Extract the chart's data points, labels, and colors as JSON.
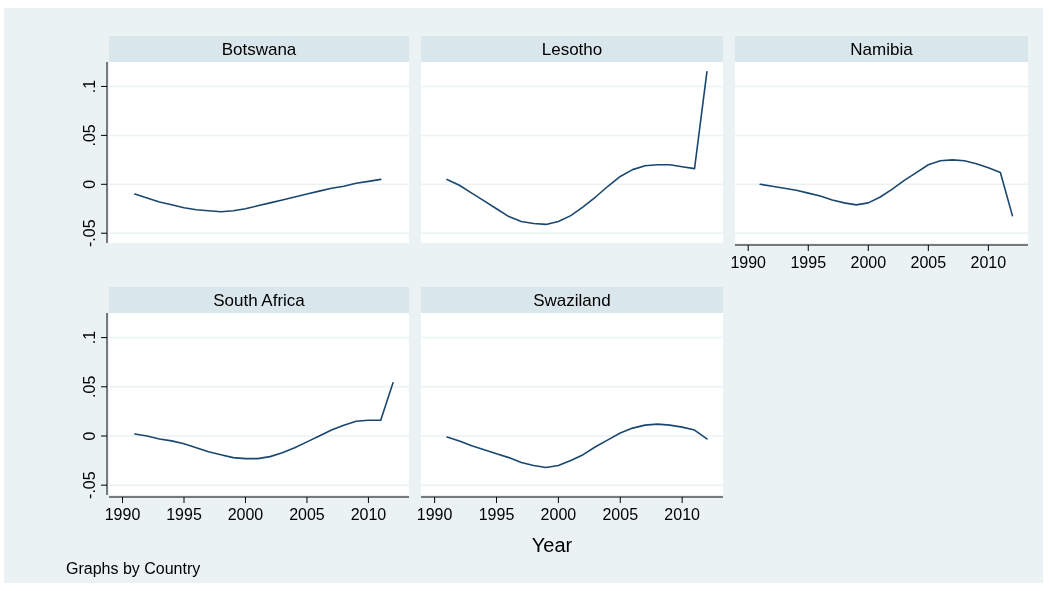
{
  "chart_data": [
    {
      "type": "line",
      "title": "Botswana",
      "x": [
        1991,
        1992,
        1993,
        1994,
        1995,
        1996,
        1997,
        1998,
        1999,
        2000,
        2001,
        2002,
        2003,
        2004,
        2005,
        2006,
        2007,
        2008,
        2009,
        2010,
        2011
      ],
      "series": [
        {
          "color": "#1a476f",
          "values": [
            -0.01,
            -0.014,
            -0.018,
            -0.021,
            -0.024,
            -0.026,
            -0.027,
            -0.028,
            -0.027,
            -0.025,
            -0.022,
            -0.019,
            -0.016,
            -0.013,
            -0.01,
            -0.007,
            -0.004,
            -0.002,
            0.001,
            0.003,
            0.005
          ]
        }
      ],
      "xlim": [
        1988.9,
        2013.3
      ],
      "ylim": [
        -0.06,
        0.125
      ],
      "yticks": [
        {
          "value": -0.05,
          "label": "-.05"
        },
        0,
        {
          "value": 0.05,
          "label": ".05"
        },
        {
          "value": 0.1,
          "label": ".1"
        }
      ],
      "tick_labels": "y",
      "grid": "y"
    },
    {
      "type": "line",
      "title": "Lesotho",
      "x": [
        1991,
        1992,
        1993,
        1994,
        1995,
        1996,
        1997,
        1998,
        1999,
        2000,
        2001,
        2002,
        2003,
        2004,
        2005,
        2006,
        2007,
        2008,
        2009,
        2010,
        2011,
        2012
      ],
      "series": [
        {
          "color": "#1a476f",
          "values": [
            0.005,
            -0.001,
            -0.009,
            -0.017,
            -0.025,
            -0.033,
            -0.038,
            -0.04,
            -0.041,
            -0.038,
            -0.032,
            -0.023,
            -0.013,
            -0.002,
            0.008,
            0.015,
            0.019,
            0.02,
            0.02,
            0.018,
            0.016,
            0.115
          ]
        }
      ],
      "xlim": [
        1988.9,
        2013.3
      ],
      "ylim": [
        -0.06,
        0.125
      ],
      "tick_labels": false,
      "grid": "y",
      "yticks": [
        {
          "value": -0.05,
          "label": null
        },
        {
          "value": 0,
          "label": null
        },
        {
          "value": 0.05,
          "label": null
        },
        {
          "value": 0.1,
          "label": null
        }
      ]
    },
    {
      "type": "line",
      "title": "Namibia",
      "x": [
        1991,
        1992,
        1993,
        1994,
        1995,
        1996,
        1997,
        1998,
        1999,
        2000,
        2001,
        2002,
        2003,
        2004,
        2005,
        2006,
        2007,
        2008,
        2009,
        2010,
        2011,
        2012
      ],
      "series": [
        {
          "color": "#1a476f",
          "values": [
            0.0,
            -0.002,
            -0.004,
            -0.006,
            -0.009,
            -0.012,
            -0.016,
            -0.019,
            -0.021,
            -0.019,
            -0.013,
            -0.005,
            0.004,
            0.012,
            0.02,
            0.024,
            0.025,
            0.024,
            0.021,
            0.017,
            0.012,
            -0.032
          ]
        }
      ],
      "xlim": [
        1988.9,
        2013.3
      ],
      "ylim": [
        -0.06,
        0.125
      ],
      "xticks": [
        1990,
        1995,
        2000,
        2005,
        2010
      ],
      "tick_labels": "x",
      "grid": "y",
      "yticks": [
        {
          "value": -0.05,
          "label": null
        },
        {
          "value": 0,
          "label": null
        },
        {
          "value": 0.05,
          "label": null
        },
        {
          "value": 0.1,
          "label": null
        }
      ]
    },
    {
      "type": "line",
      "title": "South Africa",
      "x": [
        1991,
        1992,
        1993,
        1994,
        1995,
        1996,
        1997,
        1998,
        1999,
        2000,
        2001,
        2002,
        2003,
        2004,
        2005,
        2006,
        2007,
        2008,
        2009,
        2010,
        2011,
        2012
      ],
      "series": [
        {
          "color": "#1a476f",
          "values": [
            0.002,
            0.0,
            -0.003,
            -0.005,
            -0.008,
            -0.012,
            -0.016,
            -0.019,
            -0.022,
            -0.023,
            -0.023,
            -0.021,
            -0.017,
            -0.012,
            -0.006,
            0.0,
            0.006,
            0.011,
            0.015,
            0.016,
            0.016,
            0.054
          ]
        }
      ],
      "xlim": [
        1988.9,
        2013.3
      ],
      "ylim": [
        -0.06,
        0.125
      ],
      "xticks": [
        1990,
        1995,
        2000,
        2005,
        2010
      ],
      "yticks": [
        {
          "value": -0.05,
          "label": "-.05"
        },
        0,
        {
          "value": 0.05,
          "label": ".05"
        },
        {
          "value": 0.1,
          "label": ".1"
        }
      ],
      "grid": "y"
    },
    {
      "type": "line",
      "title": "Swaziland",
      "xlabel": "Year",
      "x": [
        1991,
        1992,
        1993,
        1994,
        1995,
        1996,
        1997,
        1998,
        1999,
        2000,
        2001,
        2002,
        2003,
        2004,
        2005,
        2006,
        2007,
        2008,
        2009,
        2010,
        2011,
        2012
      ],
      "series": [
        {
          "color": "#1a476f",
          "values": [
            -0.001,
            -0.005,
            -0.01,
            -0.014,
            -0.018,
            -0.022,
            -0.027,
            -0.03,
            -0.032,
            -0.03,
            -0.025,
            -0.019,
            -0.011,
            -0.004,
            0.003,
            0.008,
            0.011,
            0.012,
            0.011,
            0.009,
            0.006,
            -0.003
          ]
        }
      ],
      "xlim": [
        1988.9,
        2013.3
      ],
      "ylim": [
        -0.06,
        0.125
      ],
      "xticks": [
        1990,
        1995,
        2000,
        2005,
        2010
      ],
      "tick_labels": "x",
      "grid": "y",
      "yticks": [
        {
          "value": -0.05,
          "label": null
        },
        {
          "value": 0,
          "label": null
        },
        {
          "value": 0.05,
          "label": null
        },
        {
          "value": 0.1,
          "label": null
        }
      ],
      "annotations": [
        "Graphs by Country"
      ]
    }
  ]
}
